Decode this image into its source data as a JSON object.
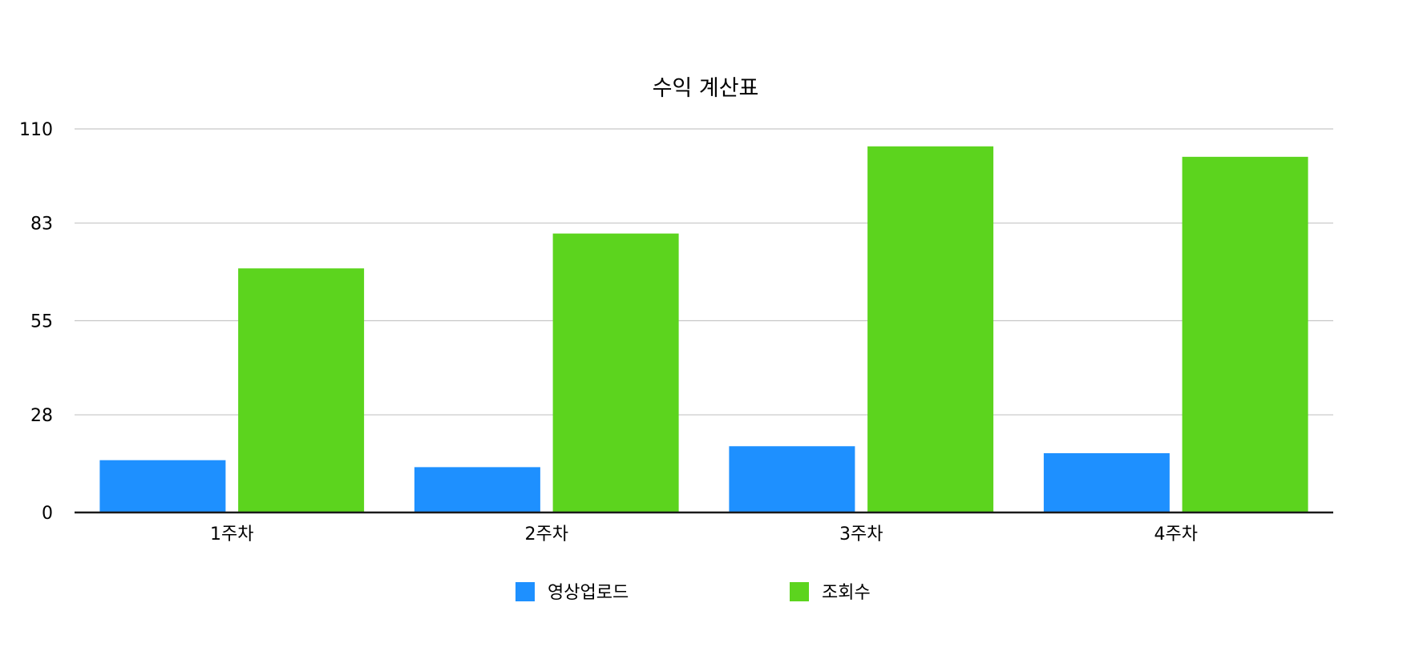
{
  "chart_data": {
    "type": "bar",
    "title": "수익 계산표",
    "xlabel": "",
    "ylabel": "",
    "categories": [
      "1주차",
      "2주차",
      "3주차",
      "4주차"
    ],
    "series": [
      {
        "name": "영상업로드",
        "color": "#1e90ff",
        "values": [
          15,
          13,
          19,
          17
        ]
      },
      {
        "name": "조회수",
        "color": "#5cd41e",
        "values": [
          70,
          80,
          105,
          102
        ]
      }
    ],
    "ylim": [
      0,
      110
    ],
    "yticks": [
      "0",
      "28",
      "55",
      "83",
      "110"
    ],
    "grid": true,
    "legend": "bottom-center"
  }
}
